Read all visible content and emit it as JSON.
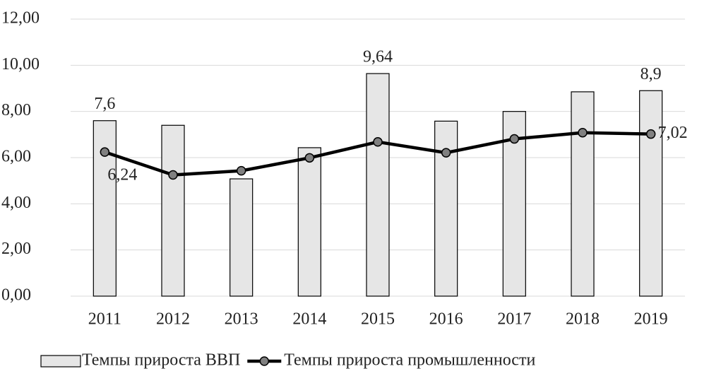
{
  "chart_data": {
    "type": "bar",
    "categories": [
      "2011",
      "2012",
      "2013",
      "2014",
      "2015",
      "2016",
      "2017",
      "2018",
      "2019"
    ],
    "series": [
      {
        "name": "Темпы прироста ВВП",
        "type": "bar",
        "color": "#e6e6e6",
        "values": [
          7.6,
          7.4,
          5.08,
          6.43,
          9.64,
          7.58,
          8.0,
          8.85,
          8.9
        ],
        "value_labels": [
          "7,6",
          null,
          null,
          null,
          "9,64",
          null,
          null,
          null,
          "8,9"
        ]
      },
      {
        "name": "Темпы прироста промышленности",
        "type": "line",
        "color": "#000000",
        "marker_color": "#808080",
        "values": [
          6.24,
          5.25,
          5.43,
          5.99,
          6.68,
          6.21,
          6.81,
          7.08,
          7.02
        ],
        "value_labels": [
          "6,24",
          null,
          null,
          null,
          null,
          null,
          null,
          null,
          "7,02"
        ]
      }
    ],
    "ylim": [
      0,
      12
    ],
    "yticks": [
      {
        "value": 0,
        "label": "0,00"
      },
      {
        "value": 2,
        "label": "2,00"
      },
      {
        "value": 4,
        "label": "4,00"
      },
      {
        "value": 6,
        "label": "6,00"
      },
      {
        "value": 8,
        "label": "8,00"
      },
      {
        "value": 10,
        "label": "10,00"
      },
      {
        "value": 12,
        "label": "12,00"
      }
    ],
    "grid": true,
    "legend": "bottom"
  }
}
